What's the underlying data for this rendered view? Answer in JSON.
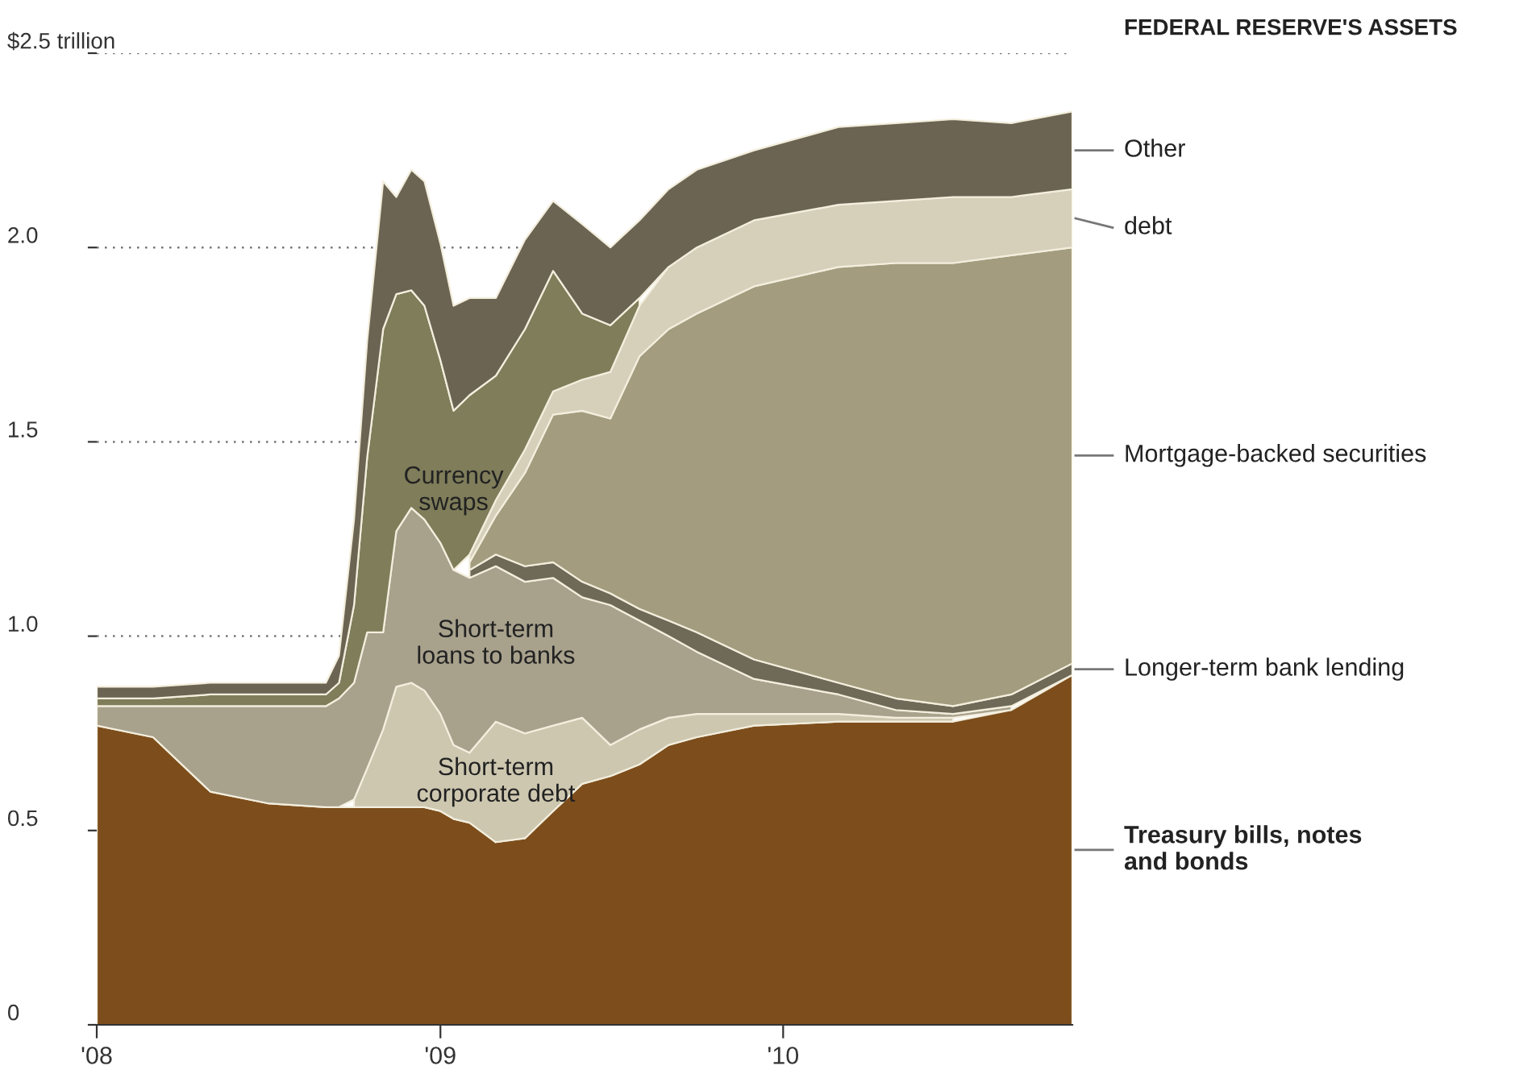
{
  "chart_data": {
    "type": "area",
    "stacked": true,
    "title": "FEDERAL RESERVE'S ASSETS",
    "x": [
      "2008-01-01",
      "2008-03-01",
      "2008-05-01",
      "2008-07-01",
      "2008-09-01",
      "2008-09-15",
      "2008-10-01",
      "2008-10-15",
      "2008-11-01",
      "2008-11-15",
      "2008-12-01",
      "2008-12-15",
      "2009-01-01",
      "2009-01-15",
      "2009-02-01",
      "2009-03-01",
      "2009-04-01",
      "2009-05-01",
      "2009-06-01",
      "2009-07-01",
      "2009-08-01",
      "2009-09-01",
      "2009-10-01",
      "2009-12-01",
      "2010-03-01",
      "2010-05-01",
      "2010-07-01",
      "2010-09-01",
      "2010-11-05"
    ],
    "series": [
      {
        "name": "Treasury bills, notes\nand bonds",
        "color": "#7d4e1c",
        "values": [
          0.77,
          0.74,
          0.6,
          0.57,
          0.56,
          0.56,
          0.56,
          0.56,
          0.56,
          0.56,
          0.56,
          0.56,
          0.55,
          0.53,
          0.52,
          0.47,
          0.48,
          0.55,
          0.62,
          0.64,
          0.67,
          0.72,
          0.74,
          0.77,
          0.78,
          0.78,
          0.78,
          0.81,
          0.9
        ]
      },
      {
        "name": "Short-term\ncorporate debt",
        "color": "#cdc7b0",
        "values": [
          null,
          null,
          null,
          null,
          null,
          null,
          0.02,
          0.1,
          0.2,
          0.31,
          0.32,
          0.3,
          0.25,
          0.19,
          0.18,
          0.31,
          0.27,
          0.22,
          0.17,
          0.08,
          0.09,
          0.07,
          0.06,
          0.03,
          0.02,
          0.01,
          0.01,
          null,
          null
        ]
      },
      {
        "name": "Short-term\nloans to banks",
        "color": "#a8a18c",
        "values": [
          0.05,
          0.08,
          0.22,
          0.25,
          0.26,
          0.28,
          0.3,
          0.35,
          0.25,
          0.4,
          0.45,
          0.44,
          0.44,
          0.45,
          0.45,
          0.4,
          0.39,
          0.38,
          0.31,
          0.36,
          0.28,
          0.21,
          0.16,
          0.09,
          0.05,
          0.02,
          0.01,
          0.01,
          null
        ]
      },
      {
        "name": "Longer-term bank lending",
        "color": "#6f6a58",
        "values": [
          null,
          null,
          null,
          null,
          null,
          null,
          null,
          null,
          null,
          null,
          null,
          null,
          null,
          null,
          0.02,
          0.03,
          0.04,
          0.04,
          0.04,
          0.03,
          0.03,
          0.04,
          0.05,
          0.05,
          0.03,
          0.03,
          0.02,
          0.03,
          0.03
        ]
      },
      {
        "name": "Mortgage-backed securities",
        "color": "#a39c7e",
        "values": [
          null,
          null,
          null,
          null,
          null,
          null,
          null,
          null,
          null,
          null,
          null,
          null,
          null,
          null,
          0.02,
          0.1,
          0.24,
          0.38,
          0.44,
          0.45,
          0.65,
          0.75,
          0.82,
          0.96,
          1.07,
          1.12,
          1.14,
          1.13,
          1.07
        ]
      },
      {
        "name": "debt",
        "color": "#d6d0bb",
        "values": [
          null,
          null,
          null,
          null,
          null,
          null,
          null,
          null,
          null,
          null,
          null,
          null,
          null,
          null,
          0.02,
          0.04,
          0.06,
          0.06,
          0.08,
          0.12,
          0.13,
          0.16,
          0.17,
          0.17,
          0.16,
          0.16,
          0.17,
          0.15,
          0.15
        ]
      },
      {
        "name": "Currency\nswaps",
        "color": "#7f7d5a",
        "values": [
          0.02,
          0.02,
          0.03,
          0.03,
          0.03,
          0.04,
          0.2,
          0.45,
          0.78,
          0.61,
          0.56,
          0.55,
          0.47,
          0.41,
          0.41,
          0.32,
          0.31,
          0.31,
          0.17,
          0.12,
          0.02,
          null,
          null,
          null,
          null,
          null,
          null,
          null,
          null
        ]
      },
      {
        "name": "Other",
        "color": "#6b6453",
        "values": [
          0.03,
          0.03,
          0.03,
          0.03,
          0.03,
          0.07,
          0.22,
          0.3,
          0.38,
          0.25,
          0.31,
          0.32,
          0.3,
          0.27,
          0.25,
          0.2,
          0.23,
          0.18,
          0.23,
          0.2,
          0.2,
          0.2,
          0.2,
          0.18,
          0.2,
          0.2,
          0.2,
          0.19,
          0.2
        ]
      }
    ],
    "xlim": [
      "2008-01-01",
      "2010-11-05"
    ],
    "xticks": [
      {
        "value": "2008-01-01",
        "label": "'08"
      },
      {
        "value": "2009-01-01",
        "label": "'09"
      },
      {
        "value": "2010-01-01",
        "label": "'10"
      }
    ],
    "ylim": [
      0,
      2.5
    ],
    "yticks": [
      0,
      0.5,
      {
        "value": 1,
        "label": "1.0"
      },
      1.5,
      {
        "value": 2,
        "label": "2.0"
      },
      {
        "value": 2.5,
        "label": "$2.5 trillion"
      }
    ],
    "grid": "y"
  }
}
